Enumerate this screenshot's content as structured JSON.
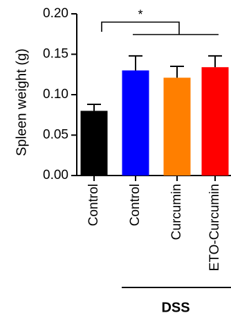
{
  "chart_data": {
    "type": "bar",
    "title": "",
    "xlabel": "",
    "ylabel": "Spleen weight (g)",
    "ylim": [
      0,
      0.2
    ],
    "yticks": [
      "0.00",
      "0.05",
      "0.10",
      "0.15",
      "0.20"
    ],
    "categories": [
      "Control",
      "Control",
      "Curcumin",
      "ETO-Curcumin"
    ],
    "values": [
      0.08,
      0.13,
      0.121,
      0.134
    ],
    "errors": [
      0.008,
      0.018,
      0.014,
      0.014
    ],
    "colors": [
      "#000000",
      "#0000ff",
      "#ff7f00",
      "#ff0000"
    ],
    "group_label": "DSS",
    "significance": "*",
    "grid": false,
    "legend": "none"
  }
}
